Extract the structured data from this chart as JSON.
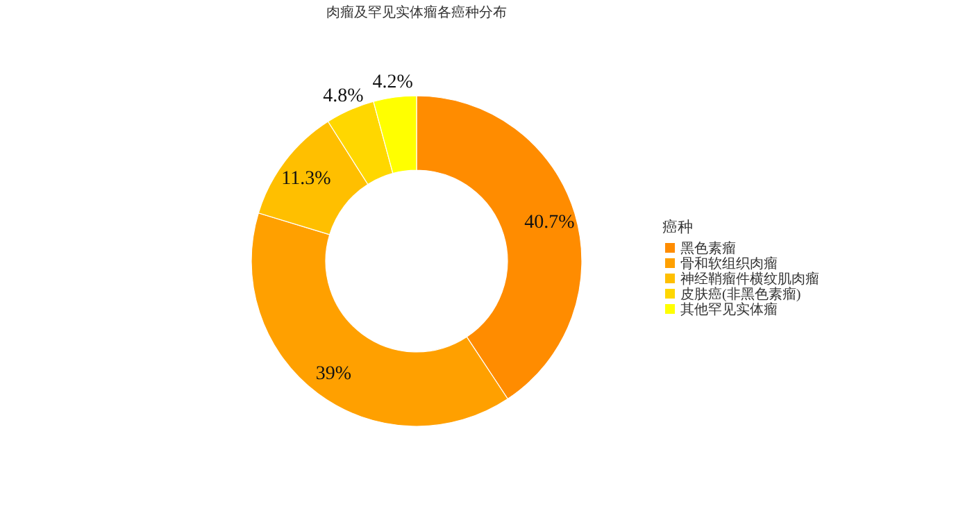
{
  "chart_data": {
    "type": "donut",
    "title": "肉瘤及罕见实体瘤各癌种分布",
    "legend_title": "癌种",
    "legend": "right",
    "categories": [
      "黑色素瘤",
      "骨和软组织肉瘤",
      "神经鞘瘤件横纹肌肉瘤",
      "皮肤癌(非黑色素瘤)",
      "其他罕见实体瘤"
    ],
    "values": [
      40.7,
      39,
      11.3,
      4.8,
      4.2
    ],
    "value_labels": [
      "40.7%",
      "39%",
      "11.3%",
      "4.8%",
      "4.2%"
    ],
    "colors": [
      "#ff8c00",
      "#ffa000",
      "#ffbf00",
      "#ffd700",
      "#ffff00"
    ]
  }
}
